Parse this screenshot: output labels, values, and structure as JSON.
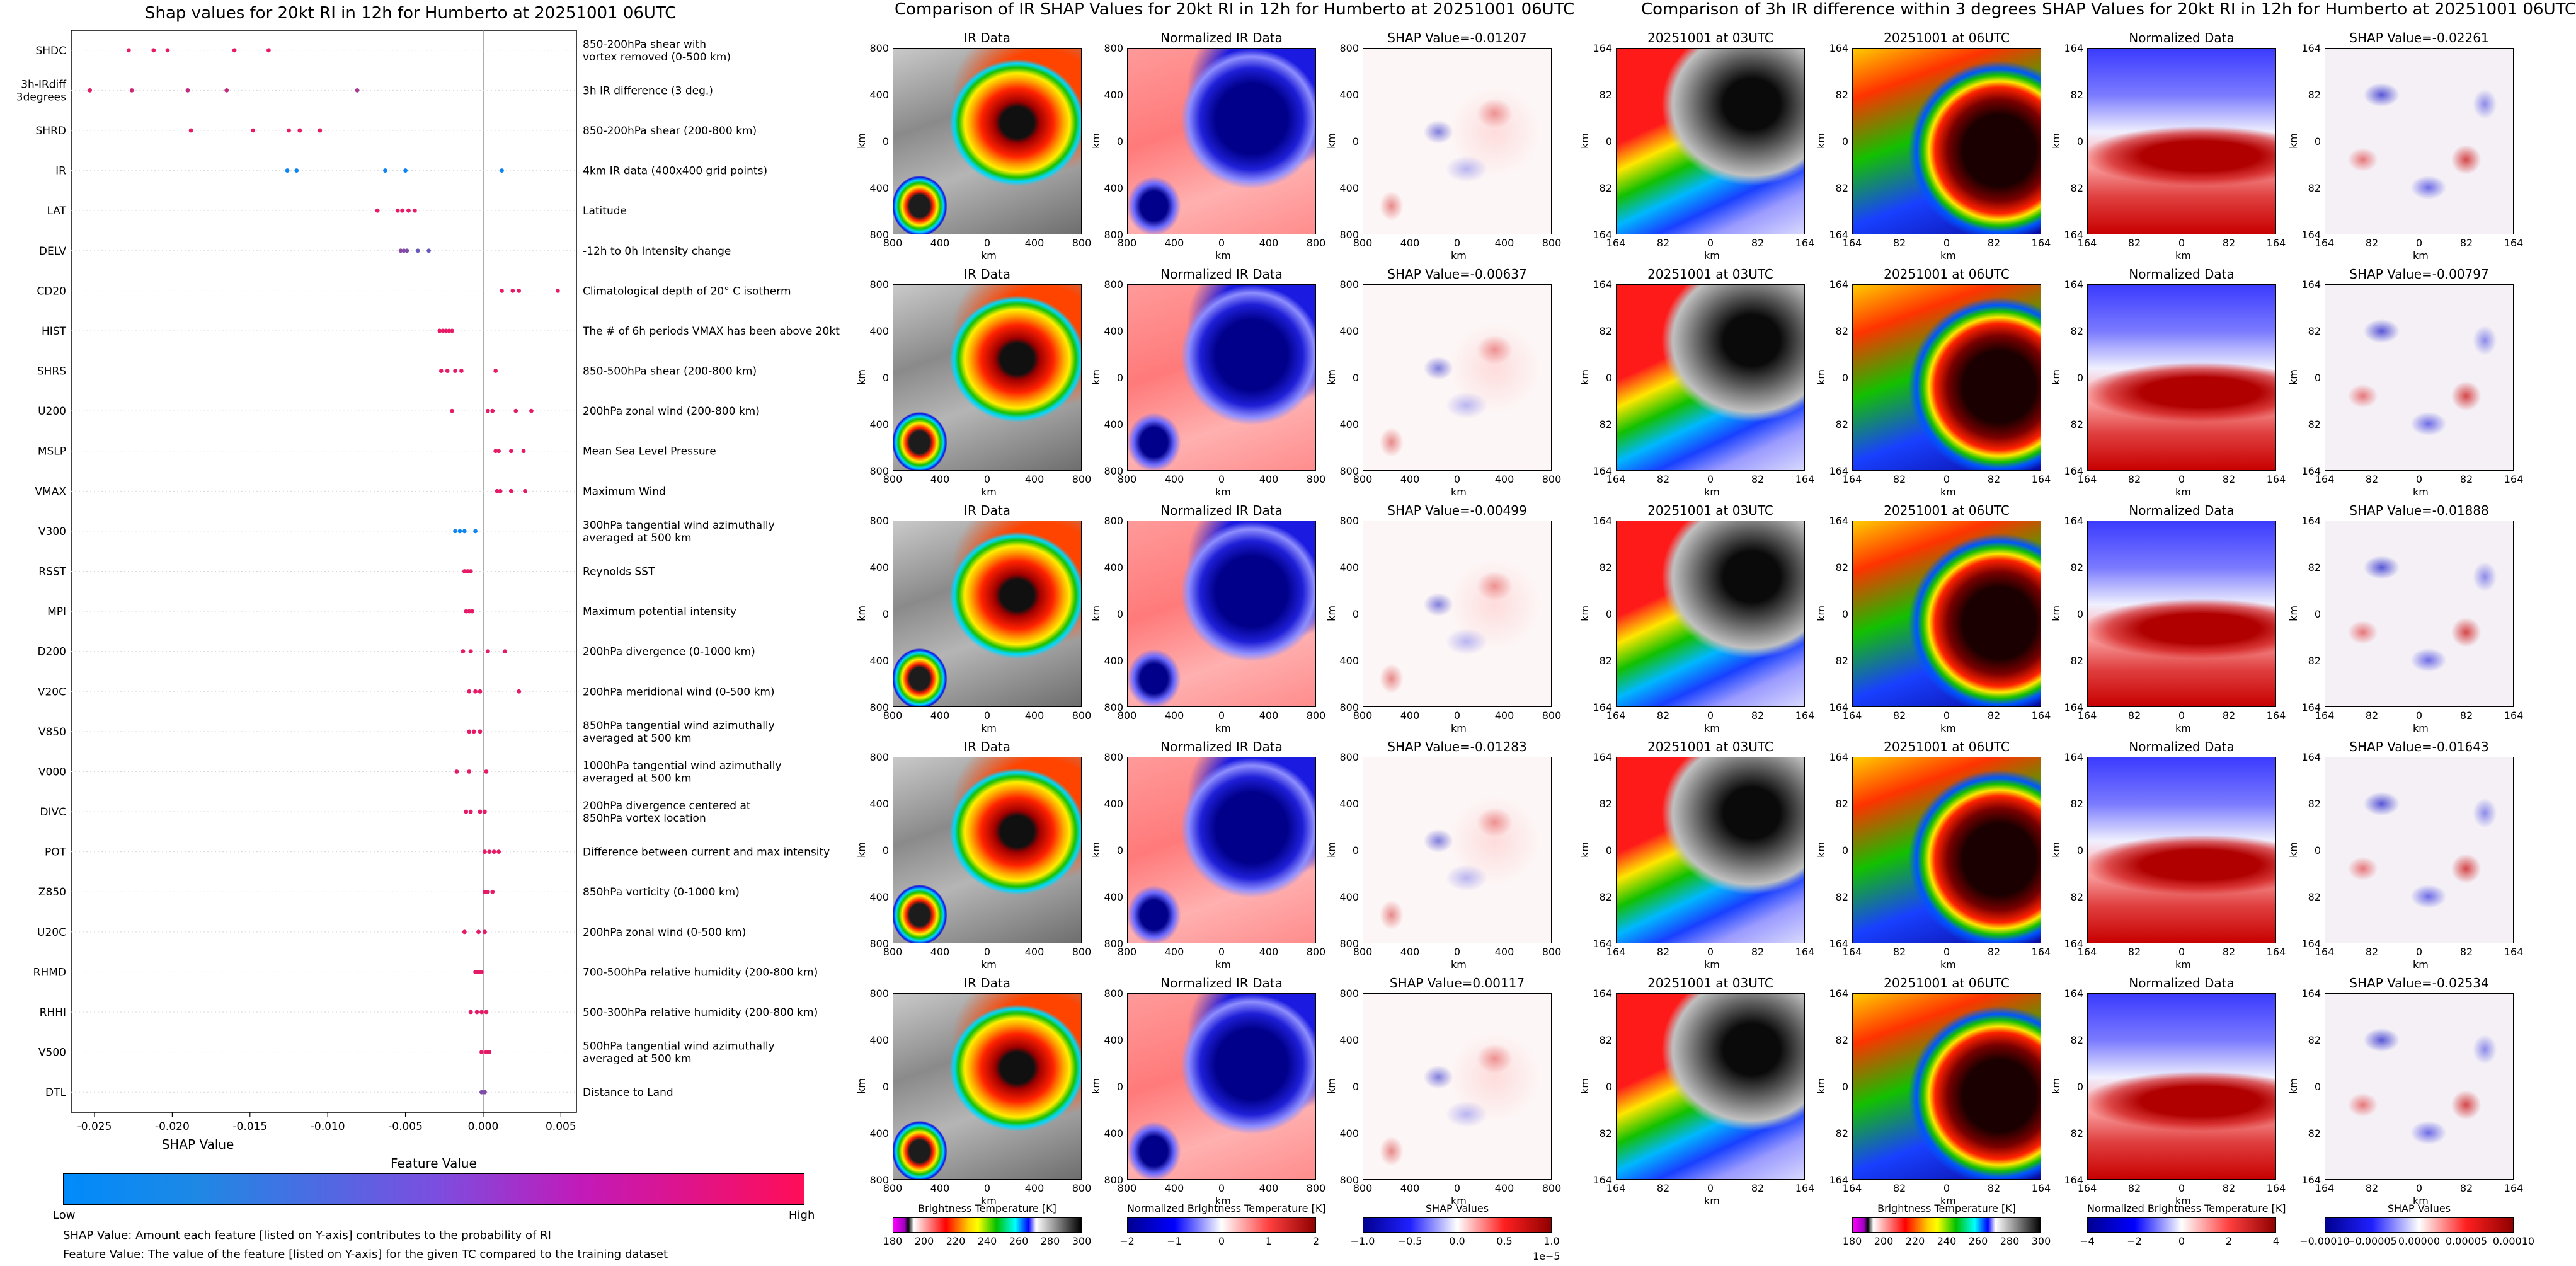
{
  "left_panel": {
    "title": "Shap values for 20kt RI in 12h for Humberto at 20251001 06UTC",
    "xlabel": "SHAP Value",
    "colorbar_title": "Feature Value",
    "colorbar_low": "Low",
    "colorbar_high": "High",
    "footnote_1": "SHAP Value: Amount each feature [listed on Y-axis] contributes to the probability of RI",
    "footnote_2": "Feature Value: The value of the feature [listed on Y-axis] for the given TC compared to the training dataset",
    "colors": {
      "low": "#1e88e5",
      "high": "#ff0d57"
    }
  },
  "chart_data": {
    "type": "scatter",
    "title": "Shap values for 20kt RI in 12h for Humberto at 20251001 06UTC",
    "xlabel": "SHAP Value",
    "xlim": [
      -0.0265,
      0.006
    ],
    "xticks": [
      "-0.025",
      "-0.020",
      "-0.015",
      "-0.010",
      "-0.005",
      "0.000",
      "0.005"
    ],
    "xtick_values": [
      -0.025,
      -0.02,
      -0.015,
      -0.01,
      -0.005,
      0.0,
      0.005
    ],
    "features": [
      {
        "code": "SHDC",
        "desc": "850-200hPa shear with\nvortex removed (0-500 km)",
        "points": [
          [
            -0.0228,
            0.9
          ],
          [
            -0.0212,
            0.9
          ],
          [
            -0.0203,
            0.9
          ],
          [
            -0.016,
            0.9
          ],
          [
            -0.0138,
            0.9
          ]
        ]
      },
      {
        "code": "3h-IRdiff\n3degrees",
        "desc": "3h IR difference (3 deg.)",
        "points": [
          [
            -0.0253,
            0.9
          ],
          [
            -0.0226,
            0.8
          ],
          [
            -0.019,
            0.75
          ],
          [
            -0.0165,
            0.75
          ],
          [
            -0.0081,
            0.65
          ]
        ]
      },
      {
        "code": "SHRD",
        "desc": "850-200hPa shear (200-800 km)",
        "points": [
          [
            -0.0188,
            0.9
          ],
          [
            -0.0148,
            0.9
          ],
          [
            -0.0125,
            0.9
          ],
          [
            -0.0118,
            0.9
          ],
          [
            -0.0105,
            0.9
          ]
        ]
      },
      {
        "code": "IR",
        "desc": "4km IR data (400x400 grid points)",
        "points": [
          [
            -0.0126,
            0.05
          ],
          [
            -0.012,
            0.05
          ],
          [
            -0.0063,
            0.05
          ],
          [
            -0.005,
            0.05
          ],
          [
            0.0012,
            0.05
          ]
        ]
      },
      {
        "code": "LAT",
        "desc": "Latitude",
        "points": [
          [
            -0.0068,
            0.9
          ],
          [
            -0.0055,
            0.9
          ],
          [
            -0.0052,
            0.9
          ],
          [
            -0.0048,
            0.9
          ],
          [
            -0.0044,
            0.9
          ]
        ]
      },
      {
        "code": "DELV",
        "desc": "-12h to 0h Intensity change",
        "points": [
          [
            -0.0053,
            0.55
          ],
          [
            -0.0051,
            0.5
          ],
          [
            -0.0049,
            0.5
          ],
          [
            -0.0042,
            0.4
          ],
          [
            -0.0035,
            0.4
          ]
        ]
      },
      {
        "code": "CD20",
        "desc": "Climatological depth of 20° C isotherm",
        "points": [
          [
            0.0012,
            0.9
          ],
          [
            0.0019,
            0.9
          ],
          [
            0.0023,
            0.9
          ],
          [
            0.0048,
            0.9
          ]
        ]
      },
      {
        "code": "HIST",
        "desc": "The # of 6h periods VMAX has been above 20kt",
        "points": [
          [
            -0.0028,
            0.9
          ],
          [
            -0.0026,
            0.9
          ],
          [
            -0.0024,
            0.9
          ],
          [
            -0.0022,
            0.9
          ],
          [
            -0.002,
            0.9
          ]
        ]
      },
      {
        "code": "SHRS",
        "desc": "850-500hPa shear (200-800 km)",
        "points": [
          [
            -0.0027,
            0.9
          ],
          [
            -0.0023,
            0.9
          ],
          [
            -0.0018,
            0.9
          ],
          [
            -0.0014,
            0.9
          ],
          [
            0.0008,
            0.9
          ]
        ]
      },
      {
        "code": "U200",
        "desc": "200hPa zonal wind (200-800 km)",
        "points": [
          [
            -0.002,
            0.9
          ],
          [
            0.0003,
            0.9
          ],
          [
            0.0006,
            0.9
          ],
          [
            0.0021,
            0.9
          ],
          [
            0.0031,
            0.9
          ]
        ]
      },
      {
        "code": "MSLP",
        "desc": "Mean Sea Level Pressure",
        "points": [
          [
            0.0008,
            0.9
          ],
          [
            0.001,
            0.9
          ],
          [
            0.0018,
            0.9
          ],
          [
            0.0026,
            0.9
          ]
        ]
      },
      {
        "code": "VMAX",
        "desc": "Maximum Wind",
        "points": [
          [
            0.0009,
            0.9
          ],
          [
            0.0011,
            0.9
          ],
          [
            0.0018,
            0.9
          ],
          [
            0.0027,
            0.9
          ]
        ]
      },
      {
        "code": "V300",
        "desc": "300hPa tangential wind azimuthally\naveraged at 500 km",
        "points": [
          [
            -0.0018,
            0.05
          ],
          [
            -0.0015,
            0.05
          ],
          [
            -0.0012,
            0.05
          ],
          [
            -0.0005,
            0.05
          ]
        ]
      },
      {
        "code": "RSST",
        "desc": "Reynolds SST",
        "points": [
          [
            -0.0012,
            0.9
          ],
          [
            -0.001,
            0.9
          ],
          [
            -0.0008,
            0.9
          ]
        ]
      },
      {
        "code": "MPI",
        "desc": "Maximum potential intensity",
        "points": [
          [
            -0.0011,
            0.9
          ],
          [
            -0.0009,
            0.9
          ],
          [
            -0.0007,
            0.9
          ]
        ]
      },
      {
        "code": "D200",
        "desc": "200hPa divergence (0-1000 km)",
        "points": [
          [
            -0.0013,
            0.9
          ],
          [
            -0.0008,
            0.9
          ],
          [
            0.0003,
            0.9
          ],
          [
            0.0014,
            0.9
          ]
        ]
      },
      {
        "code": "V20C",
        "desc": "200hPa meridional wind (0-500 km)",
        "points": [
          [
            -0.0009,
            0.9
          ],
          [
            -0.0005,
            0.9
          ],
          [
            -0.0002,
            0.9
          ],
          [
            0.0023,
            0.9
          ]
        ]
      },
      {
        "code": "V850",
        "desc": "850hPa tangential wind azimuthally\naveraged at 500 km",
        "points": [
          [
            -0.0009,
            0.9
          ],
          [
            -0.0006,
            0.9
          ],
          [
            -0.0002,
            0.9
          ]
        ]
      },
      {
        "code": "V000",
        "desc": "1000hPa tangential wind azimuthally\naveraged at 500 km",
        "points": [
          [
            -0.0017,
            0.9
          ],
          [
            -0.0009,
            0.9
          ],
          [
            0.0002,
            0.9
          ]
        ]
      },
      {
        "code": "DIVC",
        "desc": "200hPa divergence centered at\n850hPa vortex location",
        "points": [
          [
            -0.0011,
            0.9
          ],
          [
            -0.0008,
            0.9
          ],
          [
            -0.0002,
            0.9
          ],
          [
            0.0001,
            0.9
          ]
        ]
      },
      {
        "code": "POT",
        "desc": "Difference between current and max intensity",
        "points": [
          [
            0.0001,
            0.9
          ],
          [
            0.0004,
            0.9
          ],
          [
            0.0007,
            0.9
          ],
          [
            0.001,
            0.9
          ]
        ]
      },
      {
        "code": "Z850",
        "desc": "850hPa vorticity (0-1000 km)",
        "points": [
          [
            0.0001,
            0.9
          ],
          [
            0.0003,
            0.9
          ],
          [
            0.0006,
            0.9
          ]
        ]
      },
      {
        "code": "U20C",
        "desc": "200hPa zonal wind (0-500 km)",
        "points": [
          [
            -0.0012,
            0.9
          ],
          [
            -0.0003,
            0.9
          ],
          [
            0.0001,
            0.9
          ]
        ]
      },
      {
        "code": "RHMD",
        "desc": "700-500hPa relative humidity (200-800 km)",
        "points": [
          [
            -0.0005,
            0.9
          ],
          [
            -0.0003,
            0.9
          ],
          [
            -0.0001,
            0.9
          ]
        ]
      },
      {
        "code": "RHHI",
        "desc": "500-300hPa relative humidity (200-800 km)",
        "points": [
          [
            -0.0008,
            0.9
          ],
          [
            -0.0004,
            0.9
          ],
          [
            -0.0001,
            0.9
          ],
          [
            0.0002,
            0.9
          ]
        ]
      },
      {
        "code": "V500",
        "desc": "500hPa tangential wind azimuthally\naveraged at 500 km",
        "points": [
          [
            -0.0001,
            0.9
          ],
          [
            0.0002,
            0.9
          ],
          [
            0.0004,
            0.9
          ]
        ]
      },
      {
        "code": "DTL",
        "desc": "Distance to Land",
        "points": [
          [
            -0.0001,
            0.5
          ],
          [
            0.0001,
            0.5
          ]
        ]
      }
    ]
  },
  "middle_panel": {
    "title": "Comparison of IR SHAP Values for 20kt RI in 12h for Humberto at 20251001 06UTC",
    "col_titles": [
      "IR Data",
      "Normalized IR Data"
    ],
    "shap_titles": [
      "SHAP Value=-0.01207",
      "SHAP Value=-0.00637",
      "SHAP Value=-0.00499",
      "SHAP Value=-0.01283",
      "SHAP Value=0.00117"
    ],
    "ticks": [
      "800",
      "400",
      "0",
      "400",
      "800"
    ],
    "axis_label": "km",
    "colorbars": [
      {
        "label": "Brightness Temperature [K]",
        "ticks": [
          "180",
          "200",
          "220",
          "240",
          "260",
          "280",
          "300"
        ]
      },
      {
        "label": "Normalized Brightness Temperature [K]",
        "ticks": [
          "−2",
          "−1",
          "0",
          "1",
          "2"
        ]
      },
      {
        "label": "SHAP Values",
        "ticks": [
          "−1.0",
          "−0.5",
          "0.0",
          "0.5",
          "1.0"
        ],
        "multiplier": "1e−5"
      }
    ]
  },
  "right_panel": {
    "title": "Comparison of 3h IR difference within 3 degrees SHAP Values for 20kt RI in 12h for Humberto at 20251001 06UTC",
    "col_titles": [
      "20251001 at 03UTC",
      "20251001 at 06UTC",
      "Normalized Data"
    ],
    "shap_titles": [
      "SHAP Value=-0.02261",
      "SHAP Value=-0.00797",
      "SHAP Value=-0.01888",
      "SHAP Value=-0.01643",
      "SHAP Value=-0.02534"
    ],
    "ticks": [
      "164",
      "82",
      "0",
      "82",
      "164"
    ],
    "axis_label": "km",
    "colorbars": [
      {
        "label": "Brightness Temperature [K]",
        "ticks": [
          "180",
          "200",
          "220",
          "240",
          "260",
          "280",
          "300"
        ]
      },
      {
        "label": "Normalized Brightness Temperature [K]",
        "ticks": [
          "−4",
          "−2",
          "0",
          "2",
          "4"
        ]
      },
      {
        "label": "SHAP Values",
        "ticks": [
          "−0.00010",
          "−0.00005",
          "0.00000",
          "0.00005",
          "0.00010"
        ]
      }
    ]
  }
}
